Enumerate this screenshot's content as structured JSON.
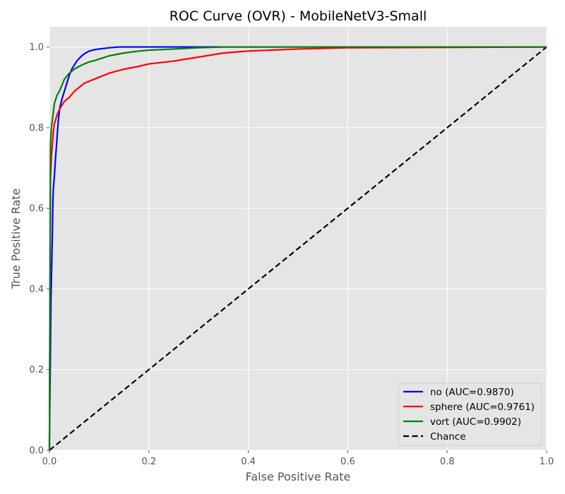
{
  "chart_data": {
    "type": "line",
    "title": "ROC Curve (OVR) - MobileNetV3-Small",
    "xlabel": "False Positive Rate",
    "ylabel": "True Positive Rate",
    "xlim": [
      0,
      1
    ],
    "ylim": [
      0,
      1.05
    ],
    "xticks": [
      0.0,
      0.2,
      0.4,
      0.6,
      0.8,
      1.0
    ],
    "yticks": [
      0.0,
      0.2,
      0.4,
      0.6,
      0.8,
      1.0
    ],
    "xtick_labels": [
      "0.0",
      "0.2",
      "0.4",
      "0.6",
      "0.8",
      "1.0"
    ],
    "ytick_labels": [
      "0.0",
      "0.2",
      "0.4",
      "0.6",
      "0.8",
      "1.0"
    ],
    "grid": true,
    "legend_position": "bottom-right",
    "background": "#e5e5e5",
    "series": [
      {
        "name": "no (AUC=0.9870)",
        "color": "#0000ff",
        "style": "solid",
        "x": [
          0.0,
          0.0,
          0.002,
          0.003,
          0.004,
          0.005,
          0.006,
          0.007,
          0.008,
          0.01,
          0.012,
          0.015,
          0.018,
          0.021,
          0.025,
          0.03,
          0.035,
          0.04,
          0.045,
          0.05,
          0.055,
          0.06,
          0.065,
          0.07,
          0.08,
          0.09,
          0.1,
          0.12,
          0.14,
          0.2,
          0.3,
          0.5,
          1.0
        ],
        "y": [
          0.0,
          0.03,
          0.24,
          0.37,
          0.43,
          0.48,
          0.54,
          0.62,
          0.65,
          0.68,
          0.72,
          0.77,
          0.82,
          0.85,
          0.87,
          0.89,
          0.91,
          0.93,
          0.945,
          0.955,
          0.965,
          0.972,
          0.978,
          0.983,
          0.99,
          0.993,
          0.995,
          0.998,
          1.0,
          1.0,
          1.0,
          1.0,
          1.0
        ]
      },
      {
        "name": "sphere (AUC=0.9761)",
        "color": "#ff0000",
        "style": "solid",
        "x": [
          0.0,
          0.002,
          0.004,
          0.006,
          0.008,
          0.01,
          0.015,
          0.02,
          0.025,
          0.03,
          0.04,
          0.05,
          0.06,
          0.07,
          0.08,
          0.1,
          0.12,
          0.15,
          0.18,
          0.2,
          0.25,
          0.3,
          0.35,
          0.4,
          0.5,
          0.6,
          1.0
        ],
        "y": [
          0.0,
          0.67,
          0.73,
          0.76,
          0.79,
          0.81,
          0.83,
          0.845,
          0.855,
          0.865,
          0.875,
          0.89,
          0.9,
          0.91,
          0.915,
          0.925,
          0.935,
          0.945,
          0.952,
          0.958,
          0.965,
          0.975,
          0.985,
          0.99,
          0.995,
          0.998,
          1.0
        ]
      },
      {
        "name": "vort (AUC=0.9902)",
        "color": "#008000",
        "style": "solid",
        "x": [
          0.0,
          0.002,
          0.004,
          0.006,
          0.008,
          0.01,
          0.015,
          0.02,
          0.025,
          0.03,
          0.04,
          0.05,
          0.06,
          0.07,
          0.08,
          0.09,
          0.1,
          0.12,
          0.15,
          0.18,
          0.2,
          0.25,
          0.3,
          0.35,
          0.4,
          1.0
        ],
        "y": [
          0.0,
          0.76,
          0.8,
          0.82,
          0.84,
          0.86,
          0.88,
          0.89,
          0.905,
          0.92,
          0.935,
          0.945,
          0.952,
          0.958,
          0.963,
          0.966,
          0.97,
          0.978,
          0.985,
          0.99,
          0.992,
          0.995,
          0.998,
          1.0,
          1.0,
          1.0
        ]
      },
      {
        "name": "Chance",
        "color": "#000000",
        "style": "dashed",
        "x": [
          0.0,
          1.0
        ],
        "y": [
          0.0,
          1.0
        ]
      }
    ]
  }
}
